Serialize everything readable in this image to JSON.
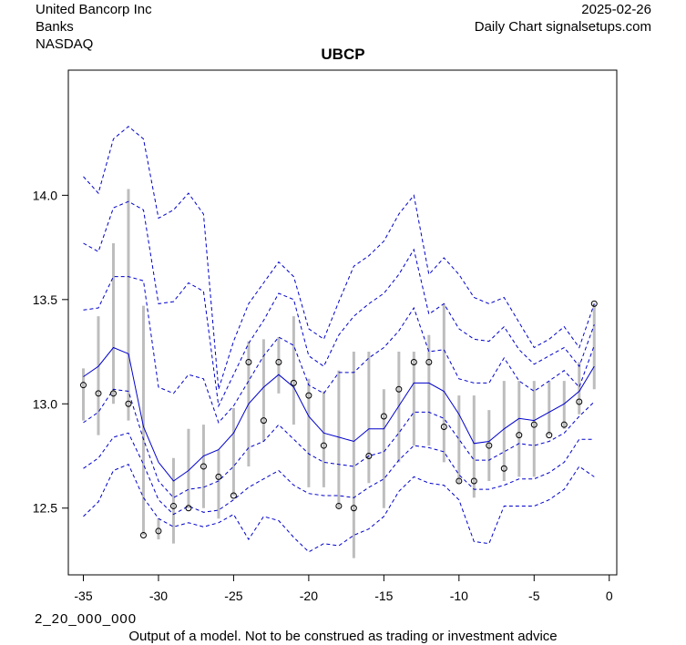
{
  "header": {
    "company": "United Bancorp Inc",
    "sector": "Banks",
    "exchange": "NASDAQ",
    "date": "2025-02-26",
    "source": "Daily Chart signalsetups.com"
  },
  "footer": {
    "code": "2_20_000_000",
    "disclaimer": "Output of a model. Not to be construed as trading or investment advice"
  },
  "colors": {
    "band": "#0000cc",
    "range_bar": "#bdbdbd",
    "point": "#000000"
  },
  "chart_data": {
    "type": "line",
    "title": "UBCP",
    "xlabel": "",
    "ylabel": "",
    "xlim": [
      -36,
      0.5
    ],
    "ylim": [
      12.18,
      14.6
    ],
    "x_ticks": [
      -35,
      -30,
      -25,
      -20,
      -15,
      -10,
      -5,
      0
    ],
    "y_ticks": [
      12.5,
      13.0,
      13.5,
      14.0
    ],
    "grid": false,
    "x": [
      -35,
      -34,
      -33,
      -32,
      -31,
      -30,
      -29,
      -28,
      -27,
      -26,
      -25,
      -24,
      -23,
      -22,
      -21,
      -20,
      -19,
      -18,
      -17,
      -16,
      -15,
      -14,
      -13,
      -12,
      -11,
      -10,
      -9,
      -8,
      -7,
      -6,
      -5,
      -4,
      -3,
      -2,
      -1
    ],
    "close": [
      13.09,
      13.05,
      13.05,
      13.0,
      12.37,
      12.39,
      12.51,
      12.5,
      12.7,
      12.65,
      12.56,
      13.2,
      12.92,
      13.2,
      13.1,
      13.04,
      12.8,
      12.51,
      12.5,
      12.75,
      12.94,
      13.07,
      13.2,
      13.2,
      12.89,
      12.63,
      12.63,
      12.8,
      12.69,
      12.85,
      12.9,
      12.85,
      12.9,
      13.01,
      13.48
    ],
    "high": [
      13.17,
      13.42,
      13.77,
      14.03,
      13.47,
      12.45,
      12.74,
      12.88,
      12.9,
      12.78,
      12.98,
      13.3,
      13.31,
      13.32,
      13.42,
      13.12,
      13.06,
      13.16,
      13.25,
      13.25,
      13.07,
      13.25,
      13.25,
      13.33,
      13.48,
      13.04,
      13.04,
      12.97,
      13.11,
      13.11,
      13.11,
      13.11,
      13.11,
      13.2,
      13.48
    ],
    "low": [
      12.92,
      12.85,
      13.0,
      12.92,
      12.37,
      12.35,
      12.33,
      12.5,
      12.5,
      12.45,
      12.56,
      12.7,
      12.82,
      13.05,
      12.9,
      12.6,
      12.6,
      12.5,
      12.26,
      12.62,
      12.5,
      12.72,
      12.8,
      12.8,
      12.72,
      12.62,
      12.55,
      12.63,
      12.63,
      12.65,
      12.65,
      12.85,
      12.88,
      12.95,
      13.07
    ],
    "series": [
      {
        "role": "upper3",
        "values": [
          14.09,
          14.01,
          14.27,
          14.33,
          14.27,
          13.89,
          13.93,
          14.01,
          13.91,
          13.07,
          13.3,
          13.48,
          13.58,
          13.68,
          13.61,
          13.36,
          13.31,
          13.49,
          13.66,
          13.71,
          13.78,
          13.91,
          14.0,
          13.62,
          13.7,
          13.62,
          13.51,
          13.48,
          13.51,
          13.39,
          13.27,
          13.31,
          13.37,
          13.27,
          13.48
        ]
      },
      {
        "role": "upper2",
        "values": [
          13.77,
          13.73,
          13.94,
          13.97,
          13.93,
          13.48,
          13.49,
          13.58,
          13.54,
          12.99,
          13.14,
          13.29,
          13.4,
          13.53,
          13.5,
          13.23,
          13.18,
          13.33,
          13.42,
          13.48,
          13.53,
          13.62,
          13.74,
          13.43,
          13.48,
          13.36,
          13.31,
          13.3,
          13.37,
          13.26,
          13.19,
          13.23,
          13.27,
          13.18,
          13.38
        ]
      },
      {
        "role": "upper1",
        "values": [
          13.45,
          13.46,
          13.61,
          13.61,
          13.59,
          13.08,
          13.05,
          13.14,
          13.12,
          12.91,
          12.99,
          13.11,
          13.23,
          13.32,
          13.28,
          13.09,
          13.05,
          13.15,
          13.15,
          13.22,
          13.27,
          13.35,
          13.46,
          13.25,
          13.26,
          13.12,
          13.1,
          13.1,
          13.22,
          13.11,
          13.06,
          13.11,
          13.16,
          13.08,
          13.28
        ]
      },
      {
        "role": "mid",
        "values": [
          13.13,
          13.18,
          13.27,
          13.24,
          12.89,
          12.72,
          12.63,
          12.68,
          12.75,
          12.78,
          12.86,
          13.0,
          13.08,
          13.14,
          13.08,
          12.94,
          12.86,
          12.84,
          12.82,
          12.88,
          12.88,
          12.99,
          13.1,
          13.1,
          13.06,
          12.95,
          12.81,
          12.82,
          12.88,
          12.93,
          12.92,
          12.96,
          13.0,
          13.06,
          13.18
        ]
      },
      {
        "role": "lower1",
        "values": [
          12.91,
          12.96,
          13.07,
          13.06,
          12.83,
          12.63,
          12.55,
          12.59,
          12.6,
          12.63,
          12.7,
          12.79,
          12.82,
          12.9,
          12.83,
          12.76,
          12.72,
          12.71,
          12.7,
          12.75,
          12.77,
          12.86,
          12.96,
          12.96,
          12.93,
          12.83,
          12.73,
          12.73,
          12.77,
          12.81,
          12.8,
          12.82,
          12.86,
          12.94,
          13.01
        ]
      },
      {
        "role": "lower2",
        "values": [
          12.69,
          12.74,
          12.84,
          12.86,
          12.71,
          12.54,
          12.47,
          12.51,
          12.48,
          12.49,
          12.54,
          12.6,
          12.64,
          12.68,
          12.61,
          12.57,
          12.56,
          12.56,
          12.55,
          12.6,
          12.64,
          12.73,
          12.8,
          12.79,
          12.77,
          12.66,
          12.59,
          12.59,
          12.61,
          12.64,
          12.64,
          12.67,
          12.72,
          12.83,
          12.83
        ]
      },
      {
        "role": "lower3",
        "values": [
          12.46,
          12.53,
          12.68,
          12.71,
          12.55,
          12.45,
          12.41,
          12.43,
          12.41,
          12.43,
          12.47,
          12.35,
          12.46,
          12.44,
          12.36,
          12.29,
          12.33,
          12.32,
          12.37,
          12.4,
          12.46,
          12.58,
          12.65,
          12.62,
          12.61,
          12.54,
          12.34,
          12.33,
          12.51,
          12.51,
          12.51,
          12.54,
          12.59,
          12.7,
          12.65
        ]
      }
    ]
  }
}
